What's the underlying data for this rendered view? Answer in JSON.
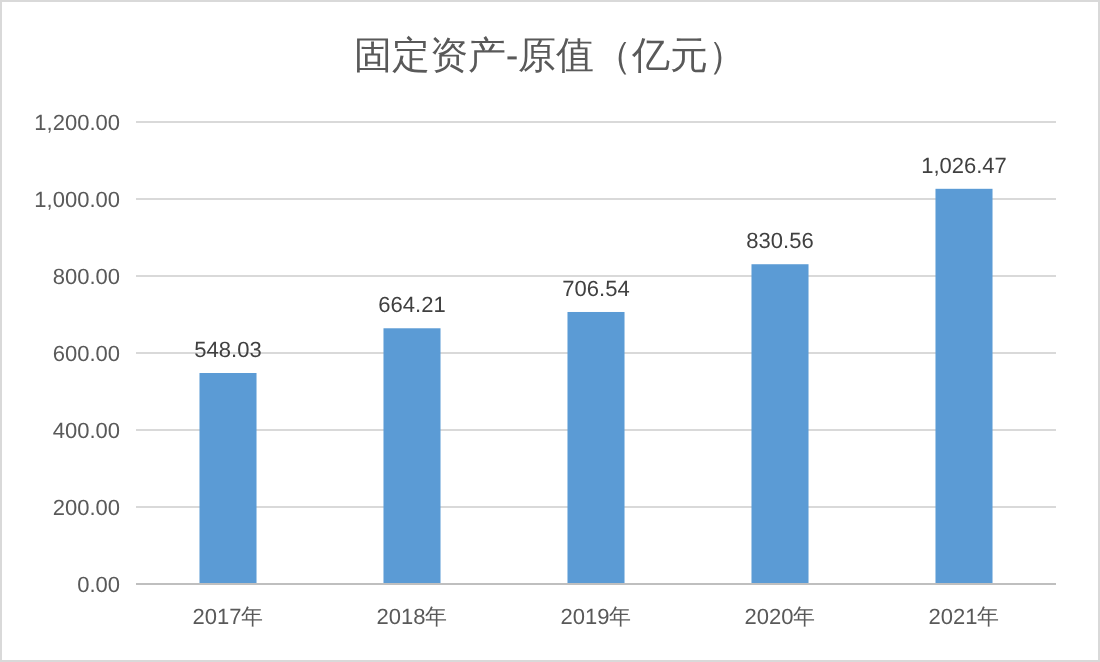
{
  "chart_data": {
    "type": "bar",
    "title": "固定资产-原值（亿元）",
    "categories": [
      "2017年",
      "2018年",
      "2019年",
      "2020年",
      "2021年"
    ],
    "values": [
      548.03,
      664.21,
      706.54,
      830.56,
      1026.47
    ],
    "value_labels": [
      "548.03",
      "664.21",
      "706.54",
      "830.56",
      "1,026.47"
    ],
    "color": "#5b9bd5",
    "ylim": [
      0,
      1200
    ],
    "yticks": [
      {
        "value": 0,
        "label": "0.00"
      },
      {
        "value": 200,
        "label": "200.00"
      },
      {
        "value": 400,
        "label": "400.00"
      },
      {
        "value": 600,
        "label": "600.00"
      },
      {
        "value": 800,
        "label": "800.00"
      },
      {
        "value": 1000,
        "label": "1,000.00"
      },
      {
        "value": 1200,
        "label": "1,200.00"
      }
    ],
    "grid": "y"
  }
}
